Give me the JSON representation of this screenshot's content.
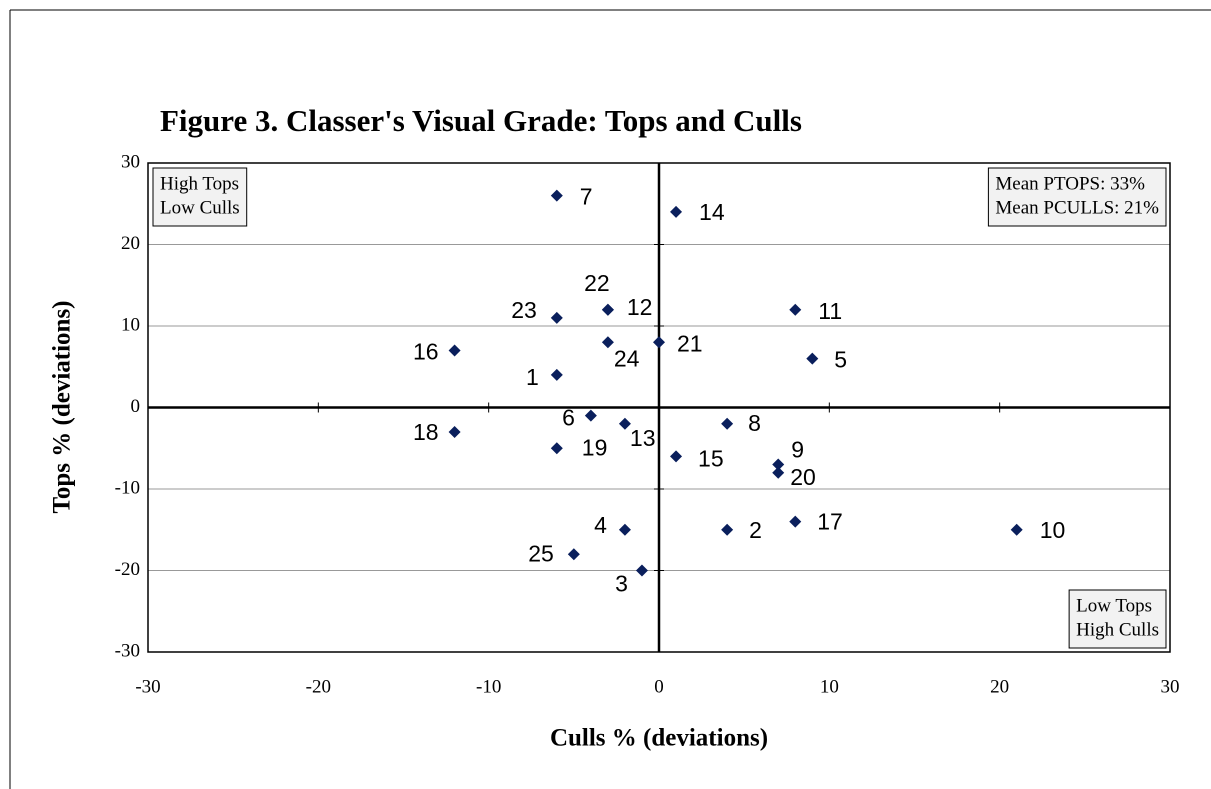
{
  "chart_data": {
    "type": "scatter",
    "title": "Figure 3.  Classer's Visual Grade: Tops and Culls",
    "xlabel": "Culls  % (deviations)",
    "ylabel": "Tops  % (deviations)",
    "xlim": [
      -30,
      30
    ],
    "ylim": [
      -30,
      30
    ],
    "xticks": [
      -30,
      -20,
      -10,
      0,
      10,
      20,
      30
    ],
    "yticks": [
      -30,
      -20,
      -10,
      0,
      10,
      20,
      30
    ],
    "grid": true,
    "color": "#0a1f5c",
    "labels": [
      "1",
      "2",
      "3",
      "4",
      "5",
      "6",
      "7",
      "8",
      "9",
      "10",
      "11",
      "12",
      "13",
      "14",
      "15",
      "16",
      "17",
      "18",
      "19",
      "20",
      "21",
      "22",
      "23",
      "24",
      "25"
    ],
    "x": [
      -6,
      4,
      -1,
      -2,
      9,
      -4,
      -6,
      4,
      7,
      21,
      8,
      -3,
      -2,
      1,
      1,
      -12,
      8,
      -12,
      -6,
      7,
      0,
      -3,
      -6,
      -3,
      -5
    ],
    "y": [
      4,
      -15,
      -20,
      -15,
      6,
      -1,
      26,
      -2,
      -7,
      -15,
      12,
      12,
      -2,
      24,
      -6,
      7,
      -14,
      -3,
      -5,
      -8,
      8,
      12,
      11,
      8,
      -18
    ],
    "annotations": [
      {
        "lines": [
          "High Tops",
          "Low Culls"
        ]
      },
      {
        "lines": [
          "Mean PTOPS: 33%",
          "Mean PCULLS: 21%"
        ]
      },
      {
        "lines": [
          "Low Tops",
          "High Culls"
        ]
      }
    ]
  }
}
